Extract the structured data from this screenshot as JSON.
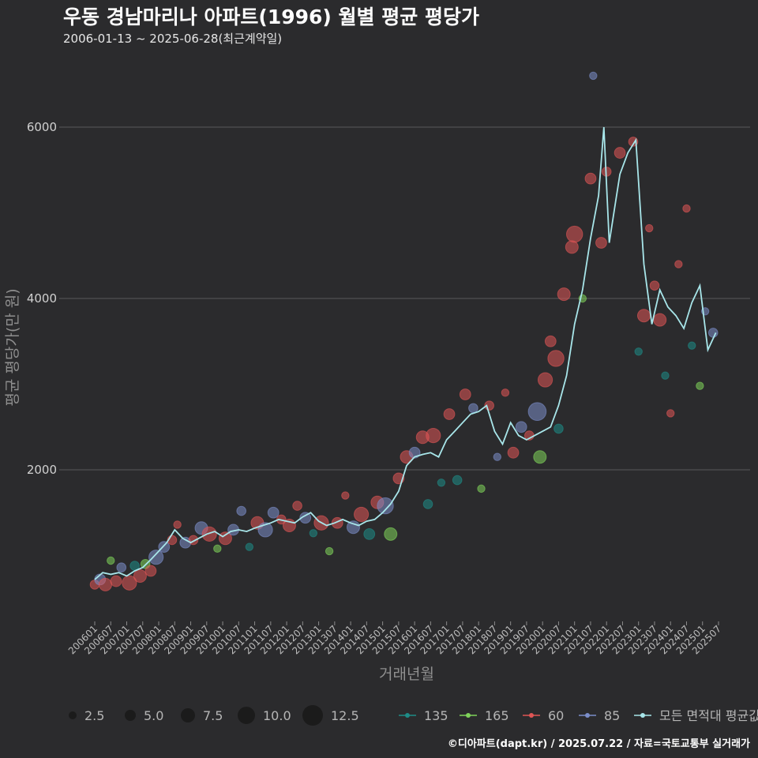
{
  "title": "우동 경남마리나 아파트(1996) 월별 평균 평당가",
  "subtitle": "2006-01-13 ~ 2025-06-28(최근계약일)",
  "caption": "©디아파트(dapt.kr) / 2025.07.22 / 자료=국토교통부 실거래가",
  "colors": {
    "background": "#2b2b2d",
    "grid": "#5a5a5a",
    "area_135": "#1e8c87",
    "area_165": "#7fd35a",
    "area_60": "#e05555",
    "area_85": "#7b8ec9",
    "average_line": "#a8e6ea"
  },
  "chart_data": {
    "type": "line",
    "title": "우동 경남마리나 아파트(1996) 월별 평균 평당가",
    "xlabel": "거래년월",
    "ylabel": "평균 평당가(만 원)",
    "x_ticks": [
      "200601",
      "200607",
      "200701",
      "200707",
      "200801",
      "200807",
      "200901",
      "200907",
      "201001",
      "201007",
      "201101",
      "201107",
      "201201",
      "201207",
      "201301",
      "201307",
      "201401",
      "201407",
      "201501",
      "201507",
      "201601",
      "201607",
      "201701",
      "201707",
      "201801",
      "201807",
      "201901",
      "201907",
      "202001",
      "202007",
      "202101",
      "202107",
      "202201",
      "202207",
      "202301",
      "202307",
      "202401",
      "202407",
      "202501",
      "202507"
    ],
    "y_ticks": [
      2000,
      4000,
      6000
    ],
    "ylim": [
      0,
      6600
    ],
    "grid": true,
    "legend_position": "bottom",
    "size_legend": {
      "values": [
        2.5,
        5.0,
        7.5,
        10.0,
        12.5
      ],
      "labels": [
        "2.5",
        "5.0",
        "7.5",
        "10.0",
        "12.5"
      ]
    },
    "color_legend": [
      {
        "label": "135",
        "color": "#1e8c87"
      },
      {
        "label": "165",
        "color": "#7fd35a"
      },
      {
        "label": "60",
        "color": "#e05555"
      },
      {
        "label": "85",
        "color": "#7b8ec9"
      },
      {
        "label": "모든 면적대 평균값",
        "color": "#a8e6ea"
      }
    ],
    "series": [
      {
        "name": "모든 면적대 평균값",
        "points": [
          [
            "2006-01",
            720
          ],
          [
            "2006-04",
            800
          ],
          [
            "2006-07",
            780
          ],
          [
            "2006-10",
            800
          ],
          [
            "2007-01",
            760
          ],
          [
            "2007-04",
            820
          ],
          [
            "2007-07",
            860
          ],
          [
            "2007-10",
            950
          ],
          [
            "2008-01",
            1050
          ],
          [
            "2008-04",
            1150
          ],
          [
            "2008-07",
            1300
          ],
          [
            "2008-10",
            1200
          ],
          [
            "2009-01",
            1150
          ],
          [
            "2009-04",
            1200
          ],
          [
            "2009-07",
            1250
          ],
          [
            "2009-10",
            1280
          ],
          [
            "2010-01",
            1220
          ],
          [
            "2010-04",
            1280
          ],
          [
            "2010-07",
            1300
          ],
          [
            "2010-10",
            1280
          ],
          [
            "2011-01",
            1320
          ],
          [
            "2011-04",
            1350
          ],
          [
            "2011-07",
            1380
          ],
          [
            "2011-10",
            1420
          ],
          [
            "2012-01",
            1400
          ],
          [
            "2012-04",
            1380
          ],
          [
            "2012-07",
            1450
          ],
          [
            "2012-10",
            1500
          ],
          [
            "2013-01",
            1400
          ],
          [
            "2013-04",
            1350
          ],
          [
            "2013-07",
            1380
          ],
          [
            "2013-10",
            1420
          ],
          [
            "2014-01",
            1380
          ],
          [
            "2014-04",
            1350
          ],
          [
            "2014-07",
            1400
          ],
          [
            "2014-10",
            1420
          ],
          [
            "2015-01",
            1500
          ],
          [
            "2015-04",
            1600
          ],
          [
            "2015-07",
            1750
          ],
          [
            "2015-10",
            2050
          ],
          [
            "2016-01",
            2150
          ],
          [
            "2016-04",
            2180
          ],
          [
            "2016-07",
            2200
          ],
          [
            "2016-10",
            2150
          ],
          [
            "2017-01",
            2350
          ],
          [
            "2017-04",
            2450
          ],
          [
            "2017-07",
            2550
          ],
          [
            "2017-10",
            2650
          ],
          [
            "2018-01",
            2680
          ],
          [
            "2018-04",
            2750
          ],
          [
            "2018-07",
            2450
          ],
          [
            "2018-10",
            2300
          ],
          [
            "2019-01",
            2550
          ],
          [
            "2019-04",
            2400
          ],
          [
            "2019-07",
            2350
          ],
          [
            "2019-10",
            2400
          ],
          [
            "2020-01",
            2450
          ],
          [
            "2020-04",
            2500
          ],
          [
            "2020-07",
            2750
          ],
          [
            "2020-10",
            3100
          ],
          [
            "2021-01",
            3700
          ],
          [
            "2021-04",
            4100
          ],
          [
            "2021-07",
            4700
          ],
          [
            "2021-10",
            5200
          ],
          [
            "2021-12",
            6000
          ],
          [
            "2022-02",
            4650
          ],
          [
            "2022-04",
            5050
          ],
          [
            "2022-06",
            5450
          ],
          [
            "2022-09",
            5700
          ],
          [
            "2022-12",
            5850
          ],
          [
            "2023-03",
            4400
          ],
          [
            "2023-06",
            3700
          ],
          [
            "2023-09",
            4100
          ],
          [
            "2023-12",
            3900
          ],
          [
            "2024-03",
            3800
          ],
          [
            "2024-06",
            3650
          ],
          [
            "2024-09",
            3950
          ],
          [
            "2024-12",
            4150
          ],
          [
            "2025-03",
            3400
          ],
          [
            "2025-06",
            3600
          ]
        ]
      }
    ],
    "points": [
      {
        "x": "2006-01",
        "y": 660,
        "area": "60",
        "size": 3
      },
      {
        "x": "2006-03",
        "y": 720,
        "area": "85",
        "size": 4
      },
      {
        "x": "2006-05",
        "y": 660,
        "area": "60",
        "size": 5
      },
      {
        "x": "2006-07",
        "y": 940,
        "area": "165",
        "size": 2
      },
      {
        "x": "2006-09",
        "y": 700,
        "area": "60",
        "size": 4
      },
      {
        "x": "2006-11",
        "y": 860,
        "area": "85",
        "size": 3
      },
      {
        "x": "2007-02",
        "y": 680,
        "area": "60",
        "size": 6
      },
      {
        "x": "2007-04",
        "y": 880,
        "area": "135",
        "size": 3
      },
      {
        "x": "2007-06",
        "y": 760,
        "area": "60",
        "size": 5
      },
      {
        "x": "2007-08",
        "y": 900,
        "area": "165",
        "size": 3
      },
      {
        "x": "2007-10",
        "y": 820,
        "area": "60",
        "size": 4
      },
      {
        "x": "2007-12",
        "y": 980,
        "area": "85",
        "size": 6
      },
      {
        "x": "2008-03",
        "y": 1100,
        "area": "85",
        "size": 4
      },
      {
        "x": "2008-06",
        "y": 1180,
        "area": "60",
        "size": 3
      },
      {
        "x": "2008-08",
        "y": 1360,
        "area": "60",
        "size": 2
      },
      {
        "x": "2008-11",
        "y": 1150,
        "area": "85",
        "size": 4
      },
      {
        "x": "2009-02",
        "y": 1180,
        "area": "60",
        "size": 3
      },
      {
        "x": "2009-05",
        "y": 1320,
        "area": "85",
        "size": 5
      },
      {
        "x": "2009-08",
        "y": 1250,
        "area": "60",
        "size": 6
      },
      {
        "x": "2009-11",
        "y": 1080,
        "area": "165",
        "size": 2
      },
      {
        "x": "2010-02",
        "y": 1200,
        "area": "60",
        "size": 5
      },
      {
        "x": "2010-05",
        "y": 1300,
        "area": "85",
        "size": 4
      },
      {
        "x": "2010-08",
        "y": 1520,
        "area": "85",
        "size": 3
      },
      {
        "x": "2010-11",
        "y": 1100,
        "area": "135",
        "size": 2
      },
      {
        "x": "2011-02",
        "y": 1380,
        "area": "60",
        "size": 5
      },
      {
        "x": "2011-05",
        "y": 1300,
        "area": "85",
        "size": 6
      },
      {
        "x": "2011-08",
        "y": 1500,
        "area": "85",
        "size": 4
      },
      {
        "x": "2011-11",
        "y": 1420,
        "area": "60",
        "size": 3
      },
      {
        "x": "2012-02",
        "y": 1350,
        "area": "60",
        "size": 5
      },
      {
        "x": "2012-05",
        "y": 1580,
        "area": "60",
        "size": 3
      },
      {
        "x": "2012-08",
        "y": 1440,
        "area": "85",
        "size": 4
      },
      {
        "x": "2012-11",
        "y": 1260,
        "area": "135",
        "size": 2
      },
      {
        "x": "2013-02",
        "y": 1380,
        "area": "60",
        "size": 6
      },
      {
        "x": "2013-05",
        "y": 1050,
        "area": "165",
        "size": 2
      },
      {
        "x": "2013-08",
        "y": 1380,
        "area": "60",
        "size": 4
      },
      {
        "x": "2013-11",
        "y": 1700,
        "area": "60",
        "size": 2
      },
      {
        "x": "2014-02",
        "y": 1330,
        "area": "85",
        "size": 5
      },
      {
        "x": "2014-05",
        "y": 1480,
        "area": "60",
        "size": 6
      },
      {
        "x": "2014-08",
        "y": 1250,
        "area": "135",
        "size": 4
      },
      {
        "x": "2014-11",
        "y": 1620,
        "area": "60",
        "size": 5
      },
      {
        "x": "2015-02",
        "y": 1580,
        "area": "85",
        "size": 7
      },
      {
        "x": "2015-04",
        "y": 1250,
        "area": "165",
        "size": 5
      },
      {
        "x": "2015-07",
        "y": 1900,
        "area": "60",
        "size": 4
      },
      {
        "x": "2015-10",
        "y": 2150,
        "area": "60",
        "size": 5
      },
      {
        "x": "2016-01",
        "y": 2200,
        "area": "85",
        "size": 4
      },
      {
        "x": "2016-04",
        "y": 2380,
        "area": "60",
        "size": 5
      },
      {
        "x": "2016-06",
        "y": 1600,
        "area": "135",
        "size": 3
      },
      {
        "x": "2016-08",
        "y": 2400,
        "area": "60",
        "size": 6
      },
      {
        "x": "2016-11",
        "y": 1850,
        "area": "135",
        "size": 2
      },
      {
        "x": "2017-02",
        "y": 2650,
        "area": "60",
        "size": 4
      },
      {
        "x": "2017-05",
        "y": 1880,
        "area": "135",
        "size": 3
      },
      {
        "x": "2017-08",
        "y": 2880,
        "area": "60",
        "size": 4
      },
      {
        "x": "2017-11",
        "y": 2720,
        "area": "85",
        "size": 3
      },
      {
        "x": "2018-02",
        "y": 1780,
        "area": "165",
        "size": 2
      },
      {
        "x": "2018-05",
        "y": 2750,
        "area": "60",
        "size": 3
      },
      {
        "x": "2018-08",
        "y": 2150,
        "area": "85",
        "size": 2
      },
      {
        "x": "2018-11",
        "y": 2900,
        "area": "60",
        "size": 2
      },
      {
        "x": "2019-02",
        "y": 2200,
        "area": "60",
        "size": 4
      },
      {
        "x": "2019-05",
        "y": 2500,
        "area": "85",
        "size": 4
      },
      {
        "x": "2019-08",
        "y": 2400,
        "area": "60",
        "size": 3
      },
      {
        "x": "2019-11",
        "y": 2680,
        "area": "85",
        "size": 8
      },
      {
        "x": "2019-12",
        "y": 2150,
        "area": "165",
        "size": 5
      },
      {
        "x": "2020-02",
        "y": 3050,
        "area": "60",
        "size": 6
      },
      {
        "x": "2020-04",
        "y": 3500,
        "area": "60",
        "size": 4
      },
      {
        "x": "2020-06",
        "y": 3300,
        "area": "60",
        "size": 7
      },
      {
        "x": "2020-07",
        "y": 2480,
        "area": "135",
        "size": 3
      },
      {
        "x": "2020-09",
        "y": 4050,
        "area": "60",
        "size": 5
      },
      {
        "x": "2020-12",
        "y": 4600,
        "area": "60",
        "size": 5
      },
      {
        "x": "2021-01",
        "y": 4750,
        "area": "60",
        "size": 7
      },
      {
        "x": "2021-04",
        "y": 4000,
        "area": "165",
        "size": 2
      },
      {
        "x": "2021-07",
        "y": 5400,
        "area": "60",
        "size": 4
      },
      {
        "x": "2021-08",
        "y": 6600,
        "area": "85",
        "size": 2
      },
      {
        "x": "2021-11",
        "y": 4650,
        "area": "60",
        "size": 4
      },
      {
        "x": "2022-01",
        "y": 5480,
        "area": "60",
        "size": 3
      },
      {
        "x": "2022-06",
        "y": 5700,
        "area": "60",
        "size": 4
      },
      {
        "x": "2022-11",
        "y": 5830,
        "area": "60",
        "size": 3
      },
      {
        "x": "2023-01",
        "y": 3380,
        "area": "135",
        "size": 2
      },
      {
        "x": "2023-03",
        "y": 3800,
        "area": "60",
        "size": 5
      },
      {
        "x": "2023-05",
        "y": 4820,
        "area": "60",
        "size": 2
      },
      {
        "x": "2023-07",
        "y": 4150,
        "area": "60",
        "size": 3
      },
      {
        "x": "2023-09",
        "y": 3750,
        "area": "60",
        "size": 5
      },
      {
        "x": "2023-11",
        "y": 3100,
        "area": "135",
        "size": 2
      },
      {
        "x": "2024-01",
        "y": 2660,
        "area": "60",
        "size": 2
      },
      {
        "x": "2024-04",
        "y": 4400,
        "area": "60",
        "size": 2
      },
      {
        "x": "2024-07",
        "y": 5050,
        "area": "60",
        "size": 2
      },
      {
        "x": "2024-09",
        "y": 3450,
        "area": "135",
        "size": 2
      },
      {
        "x": "2024-12",
        "y": 2980,
        "area": "165",
        "size": 2
      },
      {
        "x": "2025-02",
        "y": 3850,
        "area": "85",
        "size": 2
      },
      {
        "x": "2025-05",
        "y": 3600,
        "area": "85",
        "size": 3
      }
    ]
  }
}
